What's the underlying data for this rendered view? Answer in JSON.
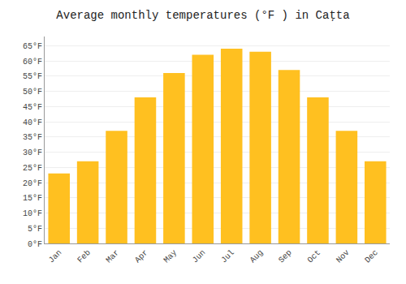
{
  "chart_data": {
    "type": "bar",
    "title": "Average monthly temperatures (°F ) in Caţta",
    "categories": [
      "Jan",
      "Feb",
      "Mar",
      "Apr",
      "May",
      "Jun",
      "Jul",
      "Aug",
      "Sep",
      "Oct",
      "Nov",
      "Dec"
    ],
    "values": [
      23,
      27,
      37,
      48,
      56,
      62,
      64,
      63,
      57,
      48,
      37,
      27
    ],
    "color": "#FFC020",
    "ylim": [
      0,
      68
    ],
    "yticks": [
      {
        "value": 0,
        "label": "0°F"
      },
      {
        "value": 5,
        "label": "5°F"
      },
      {
        "value": 10,
        "label": "10°F"
      },
      {
        "value": 15,
        "label": "15°F"
      },
      {
        "value": 20,
        "label": "20°F"
      },
      {
        "value": 25,
        "label": "25°F"
      },
      {
        "value": 30,
        "label": "30°F"
      },
      {
        "value": 35,
        "label": "35°F"
      },
      {
        "value": 40,
        "label": "40°F"
      },
      {
        "value": 45,
        "label": "45°F"
      },
      {
        "value": 50,
        "label": "50°F"
      },
      {
        "value": 55,
        "label": "55°F"
      },
      {
        "value": 60,
        "label": "60°F"
      },
      {
        "value": 65,
        "label": "65°F"
      }
    ],
    "grid": true
  }
}
